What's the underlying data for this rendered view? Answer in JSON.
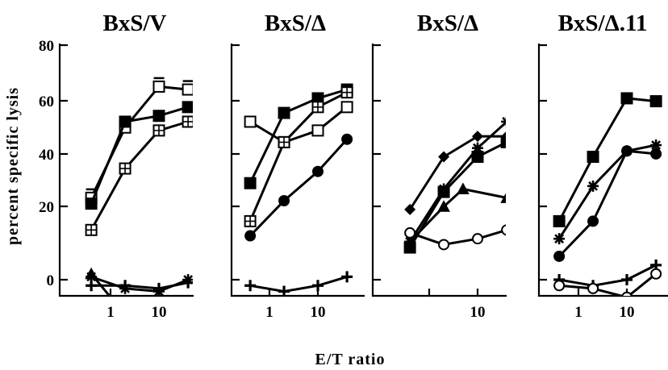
{
  "chart_data": {
    "xlabel": "E/T ratio",
    "ylabel": "percent specific lysis",
    "ylim": [
      -10,
      80
    ],
    "yticks": [
      "0",
      "20",
      "40",
      "60",
      "80"
    ],
    "xticks": [
      "1",
      "10"
    ],
    "x_scale": "log",
    "xlim": [
      0.2,
      70
    ],
    "panels": [
      {
        "title": "BxS/V",
        "type": "line",
        "series": [
          {
            "marker": "square-open-bar",
            "x": [
              0.4,
              2,
              10,
              40
            ],
            "y": [
              28,
              52,
              66,
              65
            ]
          },
          {
            "marker": "square-filled",
            "x": [
              0.4,
              2,
              10,
              40
            ],
            "y": [
              26,
              54,
              56,
              59
            ]
          },
          {
            "marker": "square-plus",
            "x": [
              0.4,
              2,
              10,
              40
            ],
            "y": [
              17,
              38,
              51,
              54
            ]
          },
          {
            "marker": "asterisk",
            "x": [
              0.4,
              2,
              10,
              40
            ],
            "y": [
              1,
              -3,
              -4,
              0
            ]
          },
          {
            "marker": "plus",
            "x": [
              0.4,
              2,
              10,
              40
            ],
            "y": [
              -2,
              -2,
              -3,
              -1
            ]
          },
          {
            "marker": "triangle",
            "x": [
              0.4,
              2
            ],
            "y": [
              2,
              -12
            ]
          },
          {
            "marker": "circle-filled",
            "x": [
              2,
              10,
              40
            ],
            "y": [
              -10,
              -7,
              -13
            ]
          }
        ]
      },
      {
        "title": "BxS/Δ",
        "type": "line",
        "series": [
          {
            "marker": "square-open",
            "x": [
              0.4,
              2,
              10,
              40
            ],
            "y": [
              54,
              47,
              51,
              59
            ]
          },
          {
            "marker": "square-filled",
            "x": [
              0.4,
              2,
              10,
              40
            ],
            "y": [
              33,
              57,
              62,
              65
            ]
          },
          {
            "marker": "square-plus",
            "x": [
              0.4,
              2,
              10,
              40
            ],
            "y": [
              20,
              47,
              59,
              64
            ]
          },
          {
            "marker": "circle-filled",
            "x": [
              0.4,
              2,
              10,
              40
            ],
            "y": [
              15,
              27,
              37,
              48
            ]
          },
          {
            "marker": "plus",
            "x": [
              0.4,
              2,
              10,
              40
            ],
            "y": [
              -2,
              -4,
              -2,
              1
            ]
          }
        ]
      },
      {
        "title": "BxS/Δ",
        "type": "line",
        "series": [
          {
            "marker": "diamond-filled",
            "x": [
              0.4,
              2,
              10,
              40
            ],
            "y": [
              24,
              42,
              49,
              49
            ]
          },
          {
            "marker": "asterisk",
            "x": [
              0.4,
              2,
              10,
              40
            ],
            "y": [
              13,
              31,
              45,
              54
            ]
          },
          {
            "marker": "square-filled",
            "x": [
              0.4,
              2,
              10,
              40
            ],
            "y": [
              11,
              30,
              42,
              47
            ]
          },
          {
            "marker": "triangle-filled",
            "x": [
              0.4,
              2,
              5,
              40
            ],
            "y": [
              13,
              25,
              31,
              28
            ]
          },
          {
            "marker": "circle-open",
            "x": [
              0.4,
              2,
              10,
              40
            ],
            "y": [
              16,
              12,
              14,
              17
            ]
          }
        ]
      },
      {
        "title": "BxS/Δ.11",
        "type": "line",
        "series": [
          {
            "marker": "square-filled",
            "x": [
              0.4,
              2,
              10,
              40
            ],
            "y": [
              20,
              42,
              62,
              61
            ]
          },
          {
            "marker": "asterisk",
            "x": [
              0.4,
              2,
              10,
              40
            ],
            "y": [
              14,
              32,
              44,
              46
            ]
          },
          {
            "marker": "circle-filled",
            "x": [
              0.4,
              2,
              10,
              40
            ],
            "y": [
              8,
              20,
              44,
              43
            ]
          },
          {
            "marker": "plus",
            "x": [
              0.4,
              2,
              10,
              40
            ],
            "y": [
              0,
              -2,
              0,
              5
            ]
          },
          {
            "marker": "circle-open",
            "x": [
              0.4,
              2,
              10,
              40
            ],
            "y": [
              -2,
              -3,
              -6,
              2
            ]
          }
        ]
      }
    ]
  }
}
